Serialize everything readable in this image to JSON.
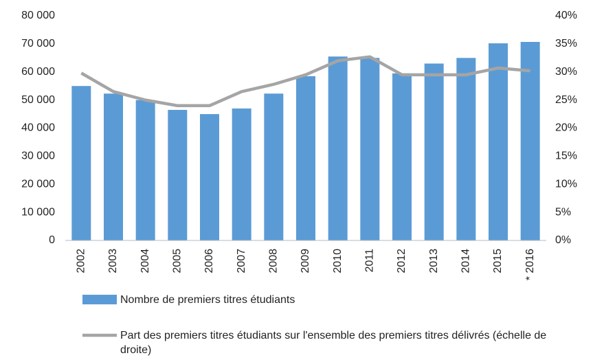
{
  "chart_data": {
    "type": "bar",
    "categories": [
      "2002",
      "2003",
      "2004",
      "2005",
      "2006",
      "2007",
      "2008",
      "2009",
      "2010",
      "2011",
      "2012",
      "2013",
      "2014",
      "2015",
      "* 2016"
    ],
    "series": [
      {
        "name": "Nombre de premiers titres étudiants",
        "type": "bar",
        "color": "#5b9bd5",
        "values": [
          55000,
          52300,
          50000,
          46500,
          45000,
          47000,
          52300,
          58500,
          65500,
          65000,
          59500,
          63000,
          65000,
          70200,
          70700
        ]
      },
      {
        "name": "Part des premiers titres étudiants sur l'ensemble des premiers titres délivrés (échelle de droite)",
        "type": "line",
        "axis": "y2",
        "color": "#a5a5a5",
        "values": [
          29.8,
          26.5,
          25,
          24,
          24,
          26.5,
          27.8,
          29.5,
          32,
          32.7,
          29.5,
          29.5,
          29.5,
          30.7,
          30.2
        ]
      }
    ],
    "ylim": [
      0,
      80000
    ],
    "yticks": [
      0,
      {
        "value": 10000,
        "label": "10 000"
      },
      {
        "value": 20000,
        "label": "20 000"
      },
      {
        "value": 30000,
        "label": "30 000"
      },
      {
        "value": 40000,
        "label": "40 000"
      },
      {
        "value": 50000,
        "label": "50 000"
      },
      {
        "value": 60000,
        "label": "60 000"
      },
      {
        "value": 70000,
        "label": "70 000"
      },
      {
        "value": 80000,
        "label": "80 000"
      }
    ],
    "y2lim": [
      0,
      40
    ],
    "y2ticks": [
      {
        "value": 0,
        "label": "0%"
      },
      {
        "value": 5,
        "label": "5%"
      },
      {
        "value": 10,
        "label": "10%"
      },
      {
        "value": 15,
        "label": "15%"
      },
      {
        "value": 20,
        "label": "20%"
      },
      {
        "value": 25,
        "label": "25%"
      },
      {
        "value": 30,
        "label": "30%"
      },
      {
        "value": 35,
        "label": "35%"
      },
      {
        "value": 40,
        "label": "40%"
      }
    ],
    "grid": false
  }
}
